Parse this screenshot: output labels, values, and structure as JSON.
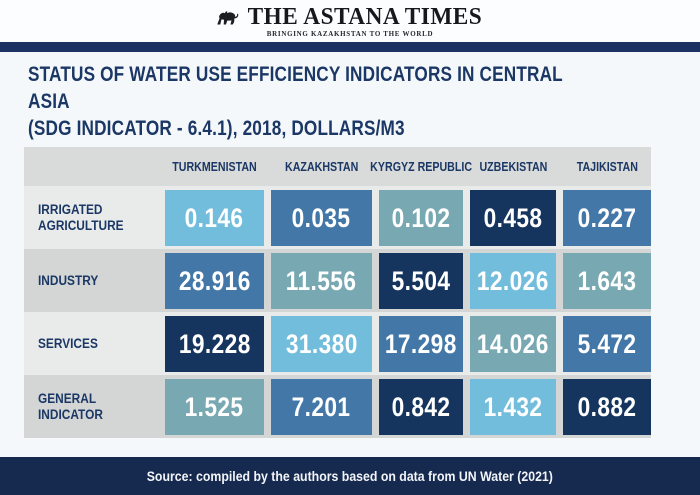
{
  "masthead": {
    "brand": "THE ASTANA TIMES",
    "tagline": "BRINGING KAZAKHSTAN TO THE WORLD",
    "emblem_icon": "snow-leopard-emblem-icon"
  },
  "page": {
    "title": "STATUS OF WATER USE EFFICIENCY INDICATORS IN CENTRAL ASIA\n(SDG INDICATOR - 6.4.1), 2018, DOLLARS/M3",
    "source_note": "Source: compiled by the authors based on data from UN Water (2021)"
  },
  "colors": {
    "palette": {
      "light_blue": "#73BDDC",
      "medium_blue": "#4377A8",
      "teal": "#78A8B1",
      "dark_navy": "#16355E"
    },
    "title_navy": "#1B3765",
    "divider_bar": "#1B3263",
    "footer_bar": "#16294E",
    "header_row_bg": "#D9DBDA",
    "row_bg_light": "#E9EBEA",
    "row_bg_dark": "#D4D6D5",
    "page_bg": "#F5F8FA",
    "masthead_bg": "#FCFDFE"
  },
  "chart_data": {
    "type": "table",
    "title": "Status of water use efficiency indicators in Central Asia (SDG indicator - 6.4.1), 2018, dollars/m3",
    "columns": [
      "TURKMENISTAN",
      "KAZAKHSTAN",
      "KYRGYZ REPUBLIC",
      "UZBEKISTAN",
      "TAJIKISTAN"
    ],
    "rows": [
      {
        "label": "IRRIGATED\nAGRICULTURE",
        "values": [
          0.146,
          0.035,
          0.102,
          0.458,
          0.227
        ],
        "display": [
          "0.146",
          "0.035",
          "0.102",
          "0.458",
          "0.227"
        ],
        "cell_colors": [
          "light_blue",
          "medium_blue",
          "teal",
          "dark_navy",
          "medium_blue"
        ]
      },
      {
        "label": "INDUSTRY",
        "values": [
          28.916,
          11.556,
          5.504,
          12.026,
          1.643
        ],
        "display": [
          "28.916",
          "11.556",
          "5.504",
          "12.026",
          "1.643"
        ],
        "cell_colors": [
          "medium_blue",
          "teal",
          "dark_navy",
          "light_blue",
          "teal"
        ]
      },
      {
        "label": "SERVICES",
        "values": [
          19.228,
          31.38,
          17.298,
          14.026,
          5.472
        ],
        "display": [
          "19.228",
          "31.380",
          "17.298",
          "14.026",
          "5.472"
        ],
        "cell_colors": [
          "dark_navy",
          "light_blue",
          "medium_blue",
          "teal",
          "medium_blue"
        ]
      },
      {
        "label": "GENERAL\nINDICATOR",
        "values": [
          1.525,
          7.201,
          0.842,
          1.432,
          0.882
        ],
        "display": [
          "1.525",
          "7.201",
          "0.842",
          "1.432",
          "0.882"
        ],
        "cell_colors": [
          "teal",
          "medium_blue",
          "dark_navy",
          "light_blue",
          "dark_navy"
        ]
      }
    ]
  }
}
